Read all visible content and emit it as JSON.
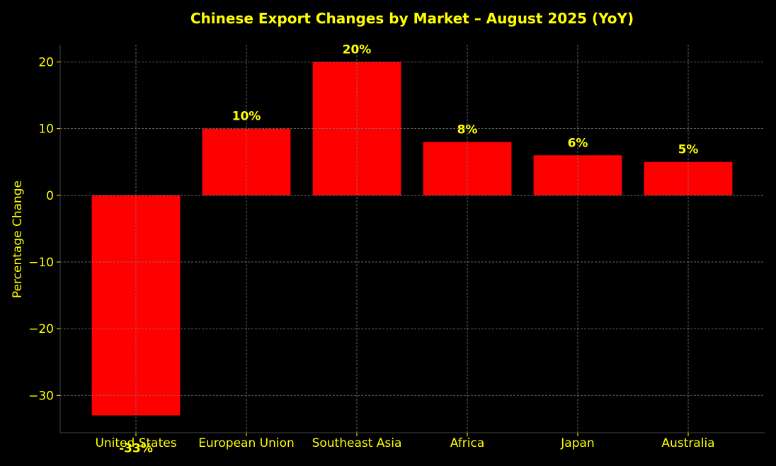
{
  "chart_data": {
    "type": "bar",
    "title": "Chinese Export Changes by Market – August 2025 (YoY)",
    "xlabel": "",
    "ylabel": "Percentage Change",
    "categories": [
      "United States",
      "European Union",
      "Southeast Asia",
      "Africa",
      "Japan",
      "Australia"
    ],
    "values": [
      -33,
      10,
      20,
      8,
      6,
      5
    ],
    "bar_labels": [
      "-33%",
      "10%",
      "20%",
      "8%",
      "6%",
      "5%"
    ],
    "ylim": [
      -35.6,
      22.6
    ],
    "yticks": [
      20,
      10,
      0,
      -10,
      -20,
      -30
    ],
    "ytick_labels": [
      "20",
      "10",
      "0",
      "−10",
      "−20",
      "−30"
    ],
    "grid": true,
    "colors": {
      "background": "#000000",
      "bar": "#ff0000",
      "text": "#ffff00",
      "grid": "#7a7a7a",
      "spine": "#444444"
    }
  }
}
